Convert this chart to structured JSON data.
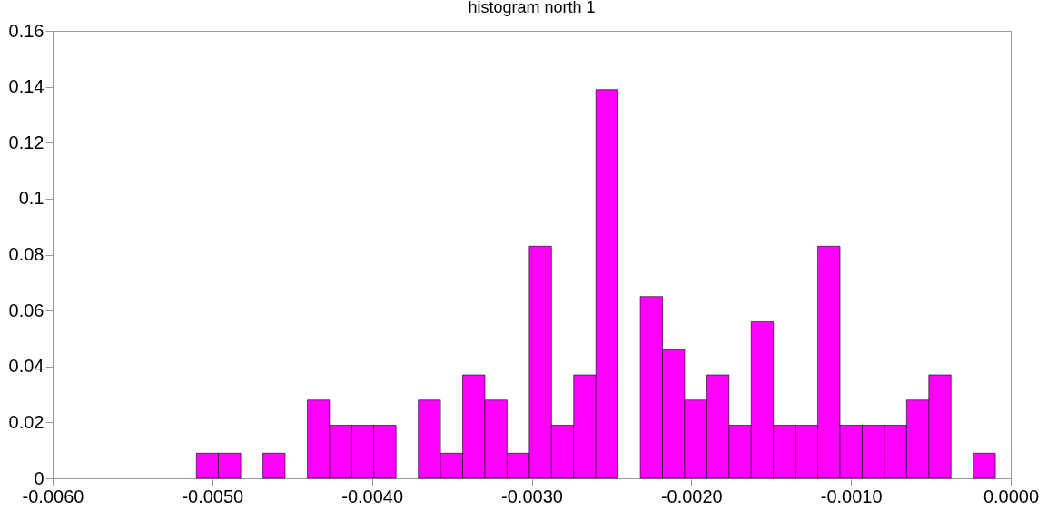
{
  "chart_data": {
    "type": "histogram",
    "title": "histogram north 1",
    "bins": [
      -0.0051,
      -0.004961,
      -0.004822,
      -0.004683,
      -0.004544,
      -0.004405,
      -0.004266,
      -0.004127,
      -0.003988,
      -0.003849,
      -0.00371,
      -0.003571,
      -0.003432,
      -0.003293,
      -0.003154,
      -0.003015,
      -0.002876,
      -0.002737,
      -0.002598,
      -0.002459,
      -0.00232,
      -0.002181,
      -0.002042,
      -0.001903,
      -0.001764,
      -0.001625,
      -0.001486,
      -0.001347,
      -0.001208,
      -0.001069,
      -0.00093,
      -0.000791,
      -0.000652,
      -0.000513,
      -0.000374,
      -0.000235,
      -9.6e-05
    ],
    "values": [
      0.009,
      0.009,
      0,
      0.009,
      0,
      0.028,
      0.019,
      0.019,
      0.019,
      0,
      0.028,
      0.009,
      0.037,
      0.028,
      0.009,
      0.083,
      0.019,
      0.037,
      0.139,
      0,
      0.065,
      0.046,
      0.028,
      0.037,
      0.019,
      0.056,
      0.019,
      0.019,
      0.083,
      0.019,
      0.019,
      0.019,
      0.028,
      0.037,
      0,
      0.009
    ],
    "color": "#ff00ff",
    "xlim": [
      -0.006,
      0
    ],
    "xticks": [
      {
        "value": -0.006,
        "label": "-0.0060"
      },
      {
        "value": -0.005,
        "label": "-0.0050"
      },
      {
        "value": -0.004,
        "label": "-0.0040"
      },
      {
        "value": -0.003,
        "label": "-0.0030"
      },
      {
        "value": -0.002,
        "label": "-0.0020"
      },
      {
        "value": -0.001,
        "label": "-0.0010"
      },
      {
        "value": 0,
        "label": "0.0000"
      }
    ],
    "ylim": [
      0,
      0.16
    ],
    "yticks": [
      0,
      0.02,
      0.04,
      0.06,
      0.08,
      0.1,
      0.12,
      0.14,
      0.16
    ],
    "grid": false
  }
}
